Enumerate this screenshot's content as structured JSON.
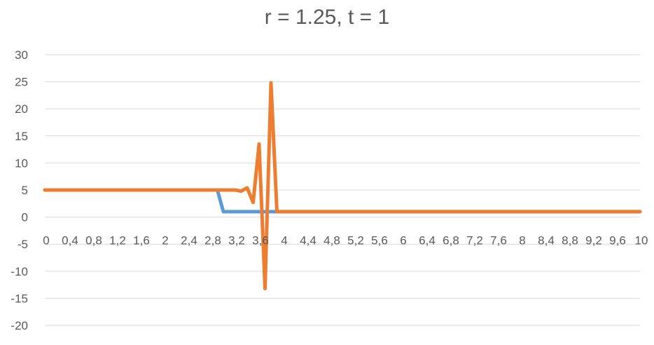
{
  "chart_data": {
    "type": "line",
    "title": "r = 1.25, t = 1",
    "xlabel": "",
    "ylabel": "",
    "ylim": [
      -20,
      30
    ],
    "yticks": [
      30,
      25,
      20,
      15,
      10,
      5,
      0,
      -5,
      -10,
      -15,
      -20
    ],
    "xtick_labels": [
      "0",
      "0,4",
      "0,8",
      "1,2",
      "1,6",
      "2",
      "2,4",
      "2,8",
      "3,2",
      "3,6",
      "4",
      "4,4",
      "4,8",
      "5,2",
      "5,6",
      "6",
      "6,4",
      "6,8",
      "7,2",
      "7,6",
      "8",
      "8,4",
      "8,8",
      "9,2",
      "9,6",
      "10"
    ],
    "xlim": [
      0,
      10
    ],
    "grid": true,
    "legend": "none",
    "series": [
      {
        "color": "#5B9BD5",
        "x": [
          0,
          2.9,
          3.0,
          3.9,
          10
        ],
        "y": [
          5,
          5,
          1,
          1,
          1
        ]
      },
      {
        "color": "#ED7D31",
        "x": [
          0,
          3.2,
          3.3,
          3.4,
          3.5,
          3.6,
          3.7,
          3.8,
          3.9,
          10
        ],
        "y": [
          5,
          5,
          4.8,
          5.4,
          2.7,
          13.5,
          -13.2,
          24.8,
          1,
          1
        ]
      }
    ]
  }
}
